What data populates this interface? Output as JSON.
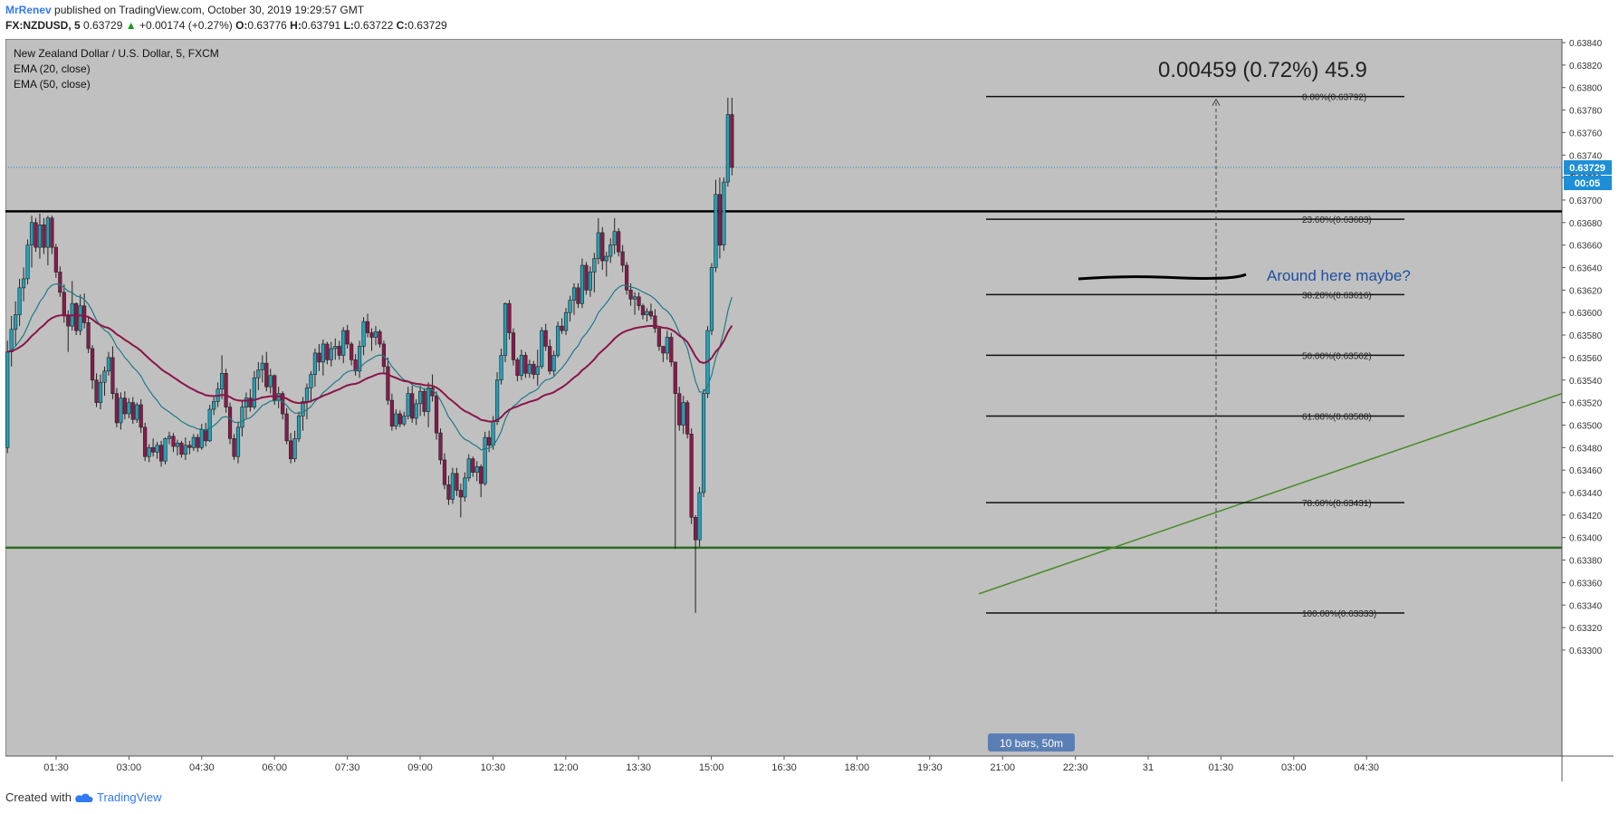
{
  "header": {
    "author": "MrRenev",
    "published_text": "published on TradingView.com, October 30, 2019 19:29:57 GMT",
    "symbol": "FX:NZDUSD, 5",
    "last": "0.63729",
    "change_arrow": "▲",
    "change": "+0.00174 (+0.27%)",
    "o_label": "O:",
    "o_value": "0.63776",
    "h_label": "H:",
    "h_value": "0.63791",
    "l_label": "L:",
    "l_value": "0.63722",
    "c_label": "C:",
    "c_value": "0.63729"
  },
  "legend": {
    "title": "New Zealand Dollar / U.S. Dollar, 5, FXCM",
    "ema20": "EMA (20, close)",
    "ema50": "EMA (50, close)"
  },
  "measure_label": "0.00459 (0.72%) 45.9",
  "note_text": "Around here maybe?",
  "bars_label": "10 bars, 50m",
  "footer": {
    "created_with": "Created with",
    "brand": "TradingView"
  },
  "chart_data": {
    "type": "candlestick",
    "title": "New Zealand Dollar / U.S. Dollar, 5, FXCM",
    "ylim": [
      0.6329,
      0.6385
    ],
    "y_ticks": [
      "0.63840",
      "0.63820",
      "0.63800",
      "0.63780",
      "0.63760",
      "0.63740",
      "0.63720",
      "0.63700",
      "0.63680",
      "0.63660",
      "0.63640",
      "0.63620",
      "0.63600",
      "0.63580",
      "0.63560",
      "0.63540",
      "0.63520",
      "0.63500",
      "0.63480",
      "0.63460",
      "0.63440",
      "0.63420",
      "0.63400",
      "0.63380",
      "0.63360",
      "0.63340",
      "0.63320",
      "0.63300"
    ],
    "x_ticks": [
      "01:30",
      "03:00",
      "04:30",
      "06:00",
      "07:30",
      "09:00",
      "10:30",
      "12:00",
      "13:30",
      "15:00",
      "16:30",
      "18:00",
      "19:30",
      "21:00",
      "22:30",
      "31",
      "01:30",
      "03:00",
      "04:30"
    ],
    "price_tag": "0.63729",
    "countdown": "00:05",
    "countdown_after": "0",
    "colors": {
      "up": "#26a0b8",
      "down": "#8a1a4b",
      "ema20": "#1f7b82",
      "ema50": "#8b1448",
      "background": "#c0c0c0",
      "resistance": "#000000",
      "support": "#2b6b1f",
      "trendline": "#4c8c2b",
      "note": "#1f4fa0",
      "price_tag": "#1e8fd6"
    },
    "horizontal_levels": [
      {
        "name": "resistance",
        "price": 0.6369,
        "color": "#000000"
      },
      {
        "name": "support",
        "price": 0.63391,
        "color": "#2b6b1f"
      }
    ],
    "fibonacci": [
      {
        "label": "0.00%(0.63792)",
        "price": 0.63792
      },
      {
        "label": "23.60%(0.63683)",
        "price": 0.63683
      },
      {
        "label": "38.20%(0.63616)",
        "price": 0.63616
      },
      {
        "label": "50.00%(0.63562)",
        "price": 0.63562
      },
      {
        "label": "61.80%(0.63508)",
        "price": 0.63508
      },
      {
        "label": "78.60%(0.63431)",
        "price": 0.63431
      },
      {
        "label": "100.00%(0.63333)",
        "price": 0.63333
      }
    ],
    "trendline": {
      "from": {
        "time": "19:00",
        "price": 0.6335
      },
      "to": {
        "time": "04:30",
        "price": 0.63528
      }
    },
    "anchors": [
      {
        "label": "01:30",
        "c": 55
      },
      {
        "label": "03:00",
        "c": 73
      },
      {
        "label": "04:30",
        "c": 91
      },
      {
        "label": "06:00",
        "c": 109
      },
      {
        "label": "07:30",
        "c": 127
      },
      {
        "label": "09:00",
        "c": 145
      },
      {
        "label": "10:30",
        "c": 163
      },
      {
        "label": "12:00",
        "c": 181
      },
      {
        "label": "13:30",
        "c": 199
      },
      {
        "label": "15:00",
        "c": 217
      },
      {
        "label": "16:30",
        "c": 235
      },
      {
        "label": "18:00",
        "c": 253
      },
      {
        "label": "19:30",
        "c": 271
      }
    ],
    "ohlc_approx": [
      [
        0.6348,
        0.63575,
        0.63475,
        0.63565
      ],
      [
        0.63565,
        0.63597,
        0.63552,
        0.63585
      ],
      [
        0.63585,
        0.6361,
        0.6357,
        0.63598
      ],
      [
        0.63598,
        0.6363,
        0.63588,
        0.63622
      ],
      [
        0.63622,
        0.6364,
        0.6361,
        0.6363
      ],
      [
        0.6363,
        0.63665,
        0.63625,
        0.6366
      ],
      [
        0.6366,
        0.63686,
        0.6364,
        0.6368
      ],
      [
        0.6368,
        0.63684,
        0.63654,
        0.63658
      ],
      [
        0.63658,
        0.63688,
        0.63648,
        0.63678
      ],
      [
        0.63678,
        0.63684,
        0.63652,
        0.63658
      ],
      [
        0.63658,
        0.63686,
        0.63642,
        0.63684
      ],
      [
        0.63684,
        0.63686,
        0.63652,
        0.63658
      ],
      [
        0.63658,
        0.63661,
        0.63631,
        0.63636
      ],
      [
        0.63636,
        0.63641,
        0.63614,
        0.63618
      ],
      [
        0.63618,
        0.63625,
        0.63591,
        0.63598
      ],
      [
        0.63598,
        0.63602,
        0.63565,
        0.63588
      ],
      [
        0.63588,
        0.63628,
        0.63584,
        0.63608
      ],
      [
        0.63608,
        0.63609,
        0.6358,
        0.63584
      ],
      [
        0.63584,
        0.63616,
        0.6358,
        0.63606
      ],
      [
        0.63606,
        0.63617,
        0.63586,
        0.63591
      ],
      [
        0.63591,
        0.63597,
        0.63564,
        0.63568
      ],
      [
        0.63568,
        0.63571,
        0.63532,
        0.6354
      ],
      [
        0.6354,
        0.63546,
        0.63516,
        0.6352
      ],
      [
        0.6352,
        0.63545,
        0.63514,
        0.63538
      ],
      [
        0.63538,
        0.63552,
        0.63526,
        0.63548
      ],
      [
        0.63548,
        0.63565,
        0.63544,
        0.6356
      ],
      [
        0.6356,
        0.6357,
        0.63523,
        0.63528
      ],
      [
        0.63528,
        0.63533,
        0.63498,
        0.63502
      ],
      [
        0.63502,
        0.63529,
        0.63496,
        0.63524
      ],
      [
        0.63524,
        0.6353,
        0.63505,
        0.6351
      ],
      [
        0.6351,
        0.63524,
        0.63506,
        0.6352
      ],
      [
        0.6352,
        0.63525,
        0.63501,
        0.63505
      ],
      [
        0.63505,
        0.6352,
        0.63502,
        0.63518
      ],
      [
        0.63518,
        0.63523,
        0.63493,
        0.63498
      ],
      [
        0.63498,
        0.63502,
        0.63468,
        0.63472
      ],
      [
        0.63472,
        0.63483,
        0.63467,
        0.6348
      ],
      [
        0.6348,
        0.63488,
        0.63472,
        0.63476
      ],
      [
        0.63476,
        0.63485,
        0.6347,
        0.63482
      ],
      [
        0.63482,
        0.63486,
        0.63463,
        0.63468
      ],
      [
        0.63468,
        0.63489,
        0.63465,
        0.63488
      ],
      [
        0.63488,
        0.63494,
        0.63483,
        0.6349
      ],
      [
        0.6349,
        0.63493,
        0.63476,
        0.63481
      ],
      [
        0.63481,
        0.63487,
        0.63473,
        0.63484
      ],
      [
        0.63484,
        0.63486,
        0.63471,
        0.63474
      ],
      [
        0.63474,
        0.63489,
        0.63469,
        0.63482
      ],
      [
        0.63482,
        0.63486,
        0.63474,
        0.6348
      ],
      [
        0.6348,
        0.63492,
        0.63477,
        0.63489
      ],
      [
        0.63489,
        0.63492,
        0.63476,
        0.6348
      ],
      [
        0.6348,
        0.63501,
        0.63478,
        0.63496
      ],
      [
        0.63496,
        0.63502,
        0.63481,
        0.63486
      ],
      [
        0.63486,
        0.63518,
        0.63485,
        0.63514
      ],
      [
        0.63514,
        0.63525,
        0.63509,
        0.63521
      ],
      [
        0.63521,
        0.63538,
        0.63516,
        0.63532
      ],
      [
        0.63532,
        0.63562,
        0.63523,
        0.63546
      ],
      [
        0.63546,
        0.6355,
        0.63511,
        0.63516
      ],
      [
        0.63516,
        0.6352,
        0.63483,
        0.63488
      ],
      [
        0.63488,
        0.63492,
        0.63469,
        0.63472
      ],
      [
        0.63472,
        0.63503,
        0.63466,
        0.63498
      ],
      [
        0.63498,
        0.63522,
        0.6349,
        0.63516
      ],
      [
        0.63516,
        0.63529,
        0.63506,
        0.63524
      ],
      [
        0.63524,
        0.63532,
        0.63512,
        0.63516
      ],
      [
        0.63516,
        0.63548,
        0.63514,
        0.63542
      ],
      [
        0.63542,
        0.63556,
        0.63531,
        0.63549
      ],
      [
        0.63549,
        0.63562,
        0.63538,
        0.63555
      ],
      [
        0.63555,
        0.63565,
        0.6353,
        0.63534
      ],
      [
        0.63534,
        0.6355,
        0.63528,
        0.63544
      ],
      [
        0.63544,
        0.63545,
        0.63518,
        0.63522
      ],
      [
        0.63522,
        0.63534,
        0.63515,
        0.63528
      ],
      [
        0.63528,
        0.6353,
        0.63505,
        0.6351
      ],
      [
        0.6351,
        0.63515,
        0.63483,
        0.63486
      ],
      [
        0.63486,
        0.63493,
        0.63466,
        0.6347
      ],
      [
        0.6347,
        0.63495,
        0.63467,
        0.63488
      ],
      [
        0.63488,
        0.63512,
        0.63485,
        0.63508
      ],
      [
        0.63508,
        0.63525,
        0.63495,
        0.63521
      ],
      [
        0.63521,
        0.63537,
        0.63505,
        0.63533
      ],
      [
        0.63533,
        0.63548,
        0.6352,
        0.63545
      ],
      [
        0.63545,
        0.63568,
        0.63534,
        0.63564
      ],
      [
        0.63564,
        0.63572,
        0.63548,
        0.63556
      ],
      [
        0.63556,
        0.63576,
        0.63544,
        0.63572
      ],
      [
        0.63572,
        0.63574,
        0.63554,
        0.63558
      ],
      [
        0.63558,
        0.63574,
        0.63552,
        0.63568
      ],
      [
        0.63568,
        0.63577,
        0.63558,
        0.6357
      ],
      [
        0.6357,
        0.63575,
        0.63558,
        0.63562
      ],
      [
        0.63562,
        0.63587,
        0.63555,
        0.63584
      ],
      [
        0.63584,
        0.63589,
        0.63568,
        0.63572
      ],
      [
        0.63572,
        0.63574,
        0.63553,
        0.63558
      ],
      [
        0.63558,
        0.63563,
        0.63544,
        0.63548
      ],
      [
        0.63548,
        0.63575,
        0.63542,
        0.6357
      ],
      [
        0.6357,
        0.63596,
        0.63562,
        0.63592
      ],
      [
        0.63592,
        0.63599,
        0.63578,
        0.63582
      ],
      [
        0.63582,
        0.63586,
        0.63566,
        0.63578
      ],
      [
        0.63578,
        0.63588,
        0.63571,
        0.63583
      ],
      [
        0.63583,
        0.63585,
        0.63569,
        0.63572
      ],
      [
        0.63572,
        0.63575,
        0.63546,
        0.63552
      ],
      [
        0.63552,
        0.6356,
        0.63518,
        0.63522
      ],
      [
        0.63522,
        0.63528,
        0.63495,
        0.63499
      ],
      [
        0.63499,
        0.63514,
        0.63496,
        0.6351
      ],
      [
        0.6351,
        0.63513,
        0.63498,
        0.63501
      ],
      [
        0.63501,
        0.63512,
        0.63499,
        0.63508
      ],
      [
        0.63508,
        0.63534,
        0.63505,
        0.63528
      ],
      [
        0.63528,
        0.63535,
        0.63502,
        0.63506
      ],
      [
        0.63506,
        0.63523,
        0.635,
        0.63519
      ],
      [
        0.63519,
        0.63535,
        0.63508,
        0.6353
      ],
      [
        0.6353,
        0.63533,
        0.63508,
        0.63512
      ],
      [
        0.63512,
        0.63538,
        0.63498,
        0.63533
      ],
      [
        0.63533,
        0.63545,
        0.63521,
        0.63526
      ],
      [
        0.63526,
        0.6353,
        0.63487,
        0.63493
      ],
      [
        0.63493,
        0.63497,
        0.63465,
        0.63469
      ],
      [
        0.63469,
        0.63475,
        0.63443,
        0.63447
      ],
      [
        0.63447,
        0.63455,
        0.63429,
        0.63434
      ],
      [
        0.63434,
        0.63462,
        0.6343,
        0.63457
      ],
      [
        0.63457,
        0.63462,
        0.63437,
        0.63442
      ],
      [
        0.63442,
        0.63448,
        0.63418,
        0.63436
      ],
      [
        0.63436,
        0.63458,
        0.63432,
        0.63453
      ],
      [
        0.63453,
        0.63474,
        0.6345,
        0.6347
      ],
      [
        0.6347,
        0.63472,
        0.63454,
        0.63458
      ],
      [
        0.63458,
        0.63468,
        0.6345,
        0.63463
      ],
      [
        0.63463,
        0.63465,
        0.63436,
        0.63448
      ],
      [
        0.63448,
        0.63494,
        0.63446,
        0.63489
      ],
      [
        0.63489,
        0.63495,
        0.63476,
        0.63482
      ],
      [
        0.63482,
        0.63508,
        0.63478,
        0.63503
      ],
      [
        0.63503,
        0.63547,
        0.635,
        0.6354
      ],
      [
        0.6354,
        0.63568,
        0.63536,
        0.63562
      ],
      [
        0.63562,
        0.63609,
        0.63556,
        0.63608
      ],
      [
        0.63608,
        0.63611,
        0.63576,
        0.63582
      ],
      [
        0.63582,
        0.63586,
        0.63553,
        0.63558
      ],
      [
        0.63558,
        0.6356,
        0.63539,
        0.63544
      ],
      [
        0.63544,
        0.63567,
        0.6354,
        0.63562
      ],
      [
        0.63562,
        0.63565,
        0.63542,
        0.63546
      ],
      [
        0.63546,
        0.63558,
        0.63542,
        0.63554
      ],
      [
        0.63554,
        0.63557,
        0.63541,
        0.63545
      ],
      [
        0.63545,
        0.63567,
        0.63535,
        0.63552
      ],
      [
        0.63552,
        0.63587,
        0.6355,
        0.63584
      ],
      [
        0.63584,
        0.6359,
        0.63566,
        0.6357
      ],
      [
        0.6357,
        0.63576,
        0.63545,
        0.63548
      ],
      [
        0.63548,
        0.63566,
        0.63544,
        0.63562
      ],
      [
        0.63562,
        0.63592,
        0.6356,
        0.63588
      ],
      [
        0.63588,
        0.63595,
        0.63581,
        0.63584
      ],
      [
        0.63584,
        0.63604,
        0.6358,
        0.636
      ],
      [
        0.636,
        0.63615,
        0.63592,
        0.63611
      ],
      [
        0.63611,
        0.63626,
        0.63598,
        0.63622
      ],
      [
        0.63622,
        0.63626,
        0.63604,
        0.63608
      ],
      [
        0.63608,
        0.63648,
        0.63604,
        0.63642
      ],
      [
        0.63642,
        0.63645,
        0.63616,
        0.6362
      ],
      [
        0.6362,
        0.63641,
        0.63614,
        0.63636
      ],
      [
        0.63636,
        0.63653,
        0.63618,
        0.63648
      ],
      [
        0.63648,
        0.63684,
        0.63643,
        0.63671
      ],
      [
        0.63671,
        0.63676,
        0.63638,
        0.63646
      ],
      [
        0.63646,
        0.63654,
        0.63632,
        0.6365
      ],
      [
        0.6365,
        0.63666,
        0.63644,
        0.6366
      ],
      [
        0.6366,
        0.63684,
        0.63652,
        0.63672
      ],
      [
        0.63672,
        0.63675,
        0.6365,
        0.63654
      ],
      [
        0.63654,
        0.6366,
        0.63636,
        0.63642
      ],
      [
        0.63642,
        0.63645,
        0.63616,
        0.6362
      ],
      [
        0.6362,
        0.63626,
        0.63606,
        0.63612
      ],
      [
        0.63612,
        0.63618,
        0.63598,
        0.63614
      ],
      [
        0.63614,
        0.63618,
        0.63602,
        0.63606
      ],
      [
        0.63606,
        0.63608,
        0.63594,
        0.63598
      ],
      [
        0.63598,
        0.63604,
        0.63592,
        0.63601
      ],
      [
        0.63601,
        0.63608,
        0.63594,
        0.63597
      ],
      [
        0.63597,
        0.63603,
        0.63582,
        0.63586
      ],
      [
        0.63586,
        0.63588,
        0.63566,
        0.6357
      ],
      [
        0.6357,
        0.6357,
        0.63556,
        0.63564
      ],
      [
        0.63564,
        0.63584,
        0.63558,
        0.63578
      ],
      [
        0.63578,
        0.63582,
        0.63552,
        0.63556
      ],
      [
        0.63556,
        0.63556,
        0.6339,
        0.63528
      ],
      [
        0.63528,
        0.63534,
        0.63495,
        0.635
      ],
      [
        0.635,
        0.63526,
        0.63492,
        0.6352
      ],
      [
        0.6352,
        0.63522,
        0.63488,
        0.63492
      ],
      [
        0.63492,
        0.63497,
        0.63412,
        0.63418
      ],
      [
        0.63418,
        0.6342,
        0.63333,
        0.63398
      ],
      [
        0.63398,
        0.63445,
        0.63392,
        0.6344
      ],
      [
        0.6344,
        0.63532,
        0.63436,
        0.63528
      ],
      [
        0.63528,
        0.63588,
        0.63524,
        0.63584
      ],
      [
        0.63584,
        0.63644,
        0.6358,
        0.6364
      ],
      [
        0.6364,
        0.63718,
        0.63636,
        0.63705
      ],
      [
        0.63705,
        0.6372,
        0.63648,
        0.6366
      ],
      [
        0.6366,
        0.6372,
        0.63655,
        0.63716
      ],
      [
        0.63716,
        0.63791,
        0.63712,
        0.63776
      ],
      [
        0.63776,
        0.63791,
        0.63722,
        0.63729
      ]
    ]
  }
}
